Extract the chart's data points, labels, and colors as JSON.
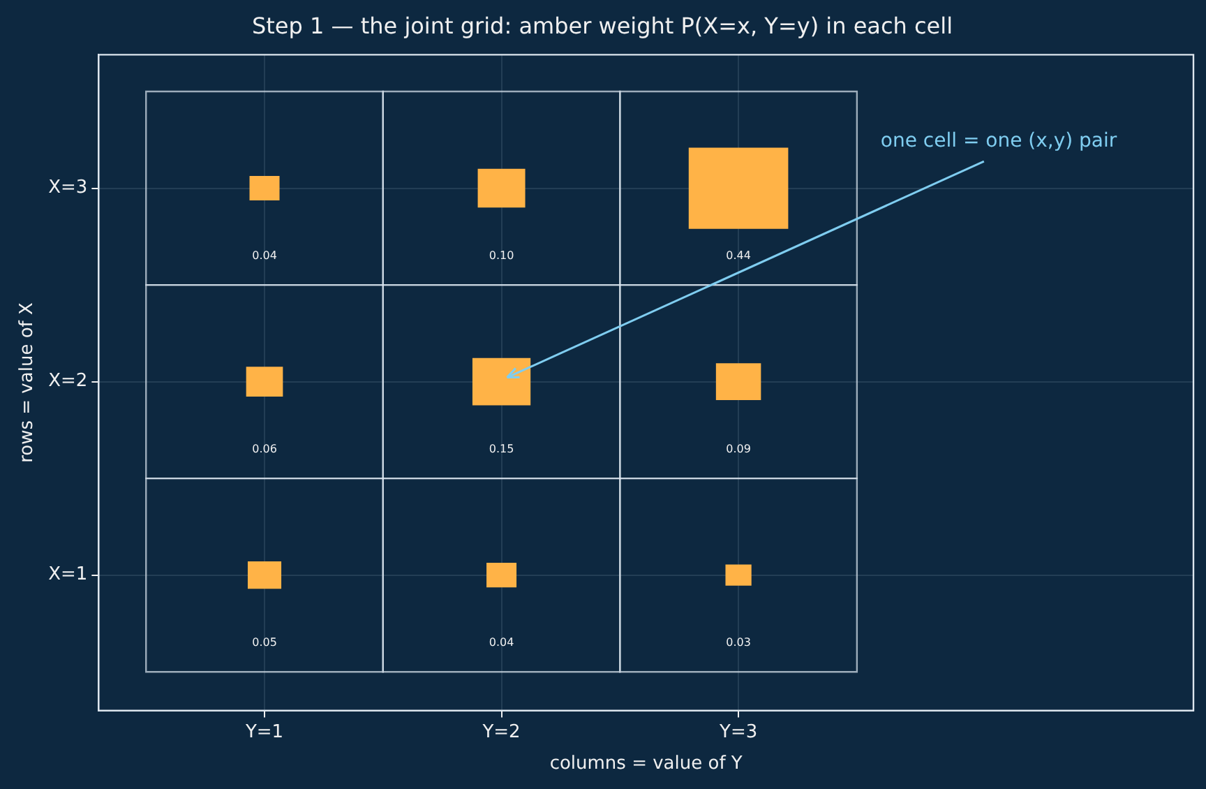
{
  "chart_data": {
    "type": "heatmap",
    "title": "Step 1 — the joint grid: amber weight P(X=x, Y=y) in each cell",
    "xlabel": "columns = value of Y",
    "ylabel": "rows = value of X",
    "categories": [
      "Y=1",
      "Y=2",
      "Y=3"
    ],
    "y_categories": [
      "X=3",
      "X=2",
      "X=1"
    ],
    "cells": [
      [
        0.04,
        0.1,
        0.44
      ],
      [
        0.06,
        0.15,
        0.09
      ],
      [
        0.05,
        0.04,
        0.03
      ]
    ],
    "cell_labels": [
      [
        "0.04",
        "0.10",
        "0.44"
      ],
      [
        "0.06",
        "0.15",
        "0.09"
      ],
      [
        "0.05",
        "0.04",
        "0.03"
      ]
    ],
    "color": "#ffb347",
    "grid": true,
    "annotations": [
      "one cell = one (x,y) pair"
    ]
  }
}
